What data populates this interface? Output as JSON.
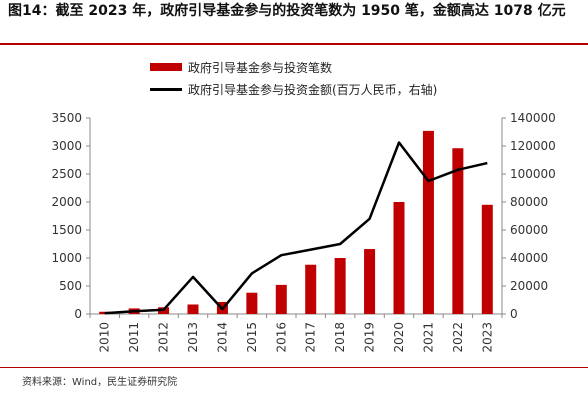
{
  "title": "图14：截至 2023 年，政府引导基金参与的投资笔数为 1950 笔，金额高达 1078 亿元",
  "source": "资料来源：Wind，民生证券研究院",
  "colors": {
    "bar": "#c00000",
    "line": "#000000",
    "accent": "#b30000"
  },
  "chart_data": {
    "type": "bar",
    "categories": [
      "2010",
      "2011",
      "2012",
      "2013",
      "2014",
      "2015",
      "2016",
      "2017",
      "2018",
      "2019",
      "2020",
      "2021",
      "2022",
      "2023"
    ],
    "series": [
      {
        "name": "政府引导基金参与投资笔数",
        "axis": "left",
        "kind": "bar",
        "values": [
          40,
          100,
          120,
          170,
          215,
          380,
          520,
          880,
          1000,
          1160,
          2000,
          3270,
          2960,
          1950
        ]
      },
      {
        "name": "政府引导基金参与投资金额(百万人民币，右轴)",
        "axis": "right",
        "kind": "line",
        "values": [
          500,
          2000,
          3000,
          26500,
          3500,
          29000,
          42000,
          46000,
          50000,
          68000,
          122500,
          95000,
          103000,
          107800
        ]
      }
    ],
    "yleft": {
      "lim": [
        0,
        3500
      ],
      "ticks": [
        "0",
        "500",
        "1000",
        "1500",
        "2000",
        "2500",
        "3000",
        "3500"
      ]
    },
    "yright": {
      "lim": [
        0,
        140000
      ],
      "ticks": [
        "0",
        "20000",
        "40000",
        "60000",
        "80000",
        "100000",
        "120000",
        "140000"
      ]
    },
    "grid": false,
    "legend": "top-left"
  }
}
